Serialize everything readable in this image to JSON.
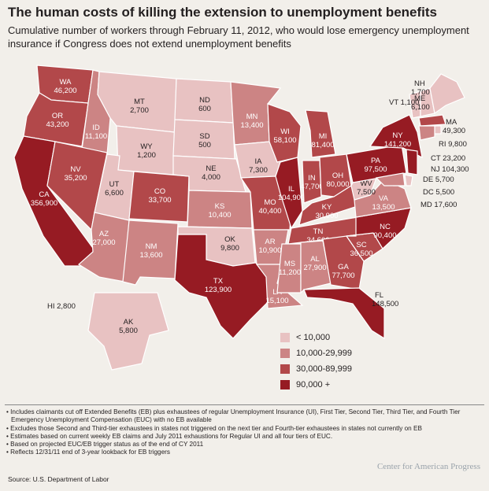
{
  "title": "The human costs of killing the extension to unemployment benefits",
  "subtitle": "Cumulative number of workers through February 11, 2012, who would lose emergency unemployment insurance if Congress does not extend unemployment benefits",
  "colors": {
    "lt10k": "#e8c2c2",
    "10k_30k": "#cc8484",
    "30k_90k": "#b2484a",
    "gt90k": "#961b23",
    "background": "#f2efea"
  },
  "states": [
    {
      "abbr": "WA",
      "value": "46,200",
      "bin": "30k_90k"
    },
    {
      "abbr": "OR",
      "value": "43,200",
      "bin": "30k_90k"
    },
    {
      "abbr": "CA",
      "value": "356,900",
      "bin": "gt90k"
    },
    {
      "abbr": "ID",
      "value": "11,100",
      "bin": "10k_30k"
    },
    {
      "abbr": "NV",
      "value": "35,200",
      "bin": "30k_90k"
    },
    {
      "abbr": "MT",
      "value": "2,700",
      "bin": "lt10k"
    },
    {
      "abbr": "WY",
      "value": "1,200",
      "bin": "lt10k"
    },
    {
      "abbr": "UT",
      "value": "6,600",
      "bin": "lt10k"
    },
    {
      "abbr": "AZ",
      "value": "27,000",
      "bin": "10k_30k"
    },
    {
      "abbr": "CO",
      "value": "33,700",
      "bin": "30k_90k"
    },
    {
      "abbr": "NM",
      "value": "13,600",
      "bin": "10k_30k"
    },
    {
      "abbr": "ND",
      "value": "600",
      "bin": "lt10k"
    },
    {
      "abbr": "SD",
      "value": "500",
      "bin": "lt10k"
    },
    {
      "abbr": "NE",
      "value": "4,000",
      "bin": "lt10k"
    },
    {
      "abbr": "KS",
      "value": "10,400",
      "bin": "10k_30k"
    },
    {
      "abbr": "OK",
      "value": "9,800",
      "bin": "lt10k"
    },
    {
      "abbr": "TX",
      "value": "123,900",
      "bin": "gt90k"
    },
    {
      "abbr": "MN",
      "value": "13,400",
      "bin": "10k_30k"
    },
    {
      "abbr": "IA",
      "value": "7,300",
      "bin": "lt10k"
    },
    {
      "abbr": "MO",
      "value": "40,400",
      "bin": "30k_90k"
    },
    {
      "abbr": "AR",
      "value": "10,900",
      "bin": "10k_30k"
    },
    {
      "abbr": "LA",
      "value": "15,100",
      "bin": "10k_30k"
    },
    {
      "abbr": "WI",
      "value": "58,100",
      "bin": "30k_90k"
    },
    {
      "abbr": "IL",
      "value": "104,900",
      "bin": "gt90k"
    },
    {
      "abbr": "MI",
      "value": "81,400",
      "bin": "30k_90k"
    },
    {
      "abbr": "IN",
      "value": "47,700",
      "bin": "30k_90k"
    },
    {
      "abbr": "OH",
      "value": "80,000",
      "bin": "30k_90k"
    },
    {
      "abbr": "KY",
      "value": "30,900",
      "bin": "30k_90k"
    },
    {
      "abbr": "TN",
      "value": "34,600",
      "bin": "30k_90k"
    },
    {
      "abbr": "MS",
      "value": "11,200",
      "bin": "10k_30k"
    },
    {
      "abbr": "AL",
      "value": "27,900",
      "bin": "10k_30k"
    },
    {
      "abbr": "GA",
      "value": "77,700",
      "bin": "30k_90k"
    },
    {
      "abbr": "FL",
      "value": "148,500",
      "bin": "gt90k"
    },
    {
      "abbr": "SC",
      "value": "36,500",
      "bin": "30k_90k"
    },
    {
      "abbr": "NC",
      "value": "90,400",
      "bin": "gt90k"
    },
    {
      "abbr": "VA",
      "value": "13,500",
      "bin": "10k_30k"
    },
    {
      "abbr": "WV",
      "value": "7,500",
      "bin": "lt10k"
    },
    {
      "abbr": "PA",
      "value": "97,500",
      "bin": "gt90k"
    },
    {
      "abbr": "NY",
      "value": "141,200",
      "bin": "gt90k"
    },
    {
      "abbr": "VT",
      "value": "1,100",
      "bin": "lt10k"
    },
    {
      "abbr": "NH",
      "value": "1,700",
      "bin": "lt10k"
    },
    {
      "abbr": "ME",
      "value": "6,100",
      "bin": "lt10k"
    },
    {
      "abbr": "MA",
      "value": "49,300",
      "bin": "30k_90k"
    },
    {
      "abbr": "RI",
      "value": "9,800",
      "bin": "lt10k"
    },
    {
      "abbr": "CT",
      "value": "23,200",
      "bin": "10k_30k"
    },
    {
      "abbr": "NJ",
      "value": "104,300",
      "bin": "gt90k"
    },
    {
      "abbr": "DE",
      "value": "5,700",
      "bin": "lt10k"
    },
    {
      "abbr": "DC",
      "value": "5,500",
      "bin": "lt10k"
    },
    {
      "abbr": "MD",
      "value": "17,600",
      "bin": "10k_30k"
    },
    {
      "abbr": "HI",
      "value": "2,800",
      "bin": "lt10k"
    },
    {
      "abbr": "AK",
      "value": "5,800",
      "bin": "lt10k"
    }
  ],
  "legend": [
    {
      "label": "< 10,000",
      "bin": "lt10k"
    },
    {
      "label": "10,000-29,999",
      "bin": "10k_30k"
    },
    {
      "label": "30,000-89,999",
      "bin": "30k_90k"
    },
    {
      "label": "90,000 +",
      "bin": "gt90k"
    }
  ],
  "notes": [
    "• Includes claimants cut off Extended Benefits (EB) plus exhaustees of regular Unemployment Insurance (UI), First Tier, Second Tier, Third Tier, and Fourth Tier Emergency Unemployment Compensation (EUC) with no EB available",
    "• Excludes those Second and Third-tier exhaustees in states not triggered on the next tier and Fourth-tier exhaustees in states not currently on EB",
    "• Estimates based on current weekly EB claims and July 2011 exhaustions for Regular UI and all four tiers of EUC.",
    "• Based on projected EUC/EB trigger status as of the end of CY 2011",
    "• Reflects 12/31/11 end of 3-year lookback for EB triggers"
  ],
  "source": "Source: U.S. Department of Labor",
  "logo": "Center for American Progress"
}
